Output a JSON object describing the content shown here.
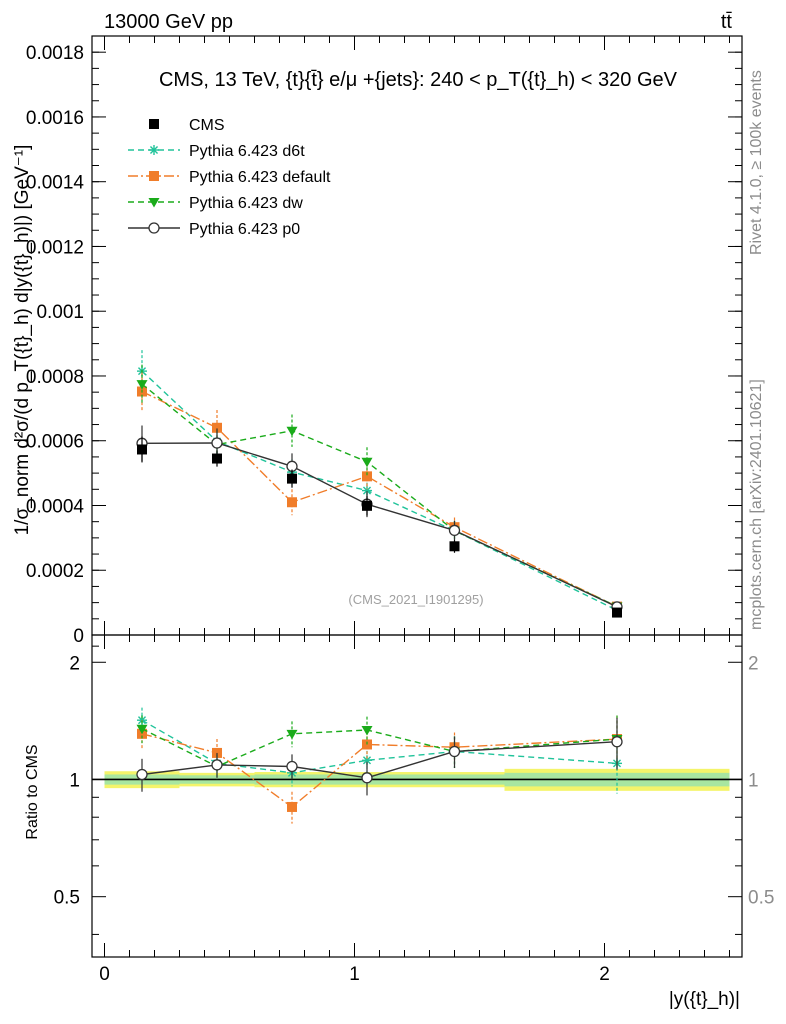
{
  "header": {
    "left": "13000 GeV pp",
    "right": "tt̄"
  },
  "side": {
    "rivet": "Rivet 4.1.0, ≥ 100k events",
    "mcplots": "mcplots.cern.ch [arXiv:2401.10621]"
  },
  "chart_data": [
    {
      "type": "line",
      "title": "CMS, 13 TeV, {t}{t̄} e/μ +{jets}: 240 <  p_T({t}_h) < 320 GeV",
      "watermark": "(CMS_2021_I1901295)",
      "xlabel": "|y({t}_h)|",
      "ylabel": "1/σ_norm d²σ/(d p_T({t}_h) d|y({t}_h)|) [GeV⁻¹]",
      "xlim": [
        -0.05,
        2.55
      ],
      "ylim": [
        0,
        0.00185
      ],
      "yticks": [
        {
          "v": 0,
          "label": "0"
        },
        {
          "v": 0.0002,
          "label": "0.0002"
        },
        {
          "v": 0.0004,
          "label": "0.0004"
        },
        {
          "v": 0.0006,
          "label": "0.0006"
        },
        {
          "v": 0.0008,
          "label": "0.0008"
        },
        {
          "v": 0.001,
          "label": "0.001"
        },
        {
          "v": 0.0012,
          "label": "0.0012"
        },
        {
          "v": 0.0014,
          "label": "0.0014"
        },
        {
          "v": 0.0016,
          "label": "0.0016"
        },
        {
          "v": 0.0018,
          "label": "0.0018"
        }
      ],
      "x": [
        0.15,
        0.45,
        0.75,
        1.05,
        1.4,
        2.05
      ],
      "series": [
        {
          "name": "CMS",
          "color": "#000000",
          "marker": "square",
          "dash": "none",
          "values": [
            0.000573,
            0.000545,
            0.000483,
            0.000399,
            0.000274,
            6.93e-05
          ],
          "err": [
            4e-05,
            2.5e-05,
            2.8e-05,
            3e-05,
            2e-05,
            8e-06
          ]
        },
        {
          "name": "Pythia 6.423 d6t",
          "color": "#20c39a",
          "marker": "star",
          "dash": "6,4",
          "values": [
            0.000815,
            0.000598,
            0.000503,
            0.000446,
            0.000322,
            7.62e-05
          ],
          "err": [
            6.5e-05,
            4.5e-05,
            4e-05,
            4e-05,
            3e-05,
            1.5e-05
          ]
        },
        {
          "name": "Pythia 6.423 default",
          "color": "#f07d2a",
          "marker": "square",
          "dash": "10,3,2,3",
          "values": [
            0.000752,
            0.00064,
            0.00041,
            0.00049,
            0.000333,
            8.77e-05
          ],
          "err": [
            6e-05,
            5.5e-05,
            4e-05,
            4e-05,
            3e-05,
            1.5e-05
          ]
        },
        {
          "name": "Pythia 6.423 dw",
          "color": "#1aab1a",
          "marker": "triangle",
          "dash": "6,4",
          "values": [
            0.000775,
            0.000588,
            0.000631,
            0.000535,
            0.000322,
            8.82e-05
          ],
          "err": [
            6e-05,
            4.5e-05,
            5e-05,
            4.5e-05,
            3e-05,
            1.5e-05
          ]
        },
        {
          "name": "Pythia 6.423 p0",
          "color": "#333333",
          "marker": "circle",
          "dash": "none",
          "values": [
            0.000592,
            0.000593,
            0.000521,
            0.000404,
            0.000323,
            8.68e-05
          ],
          "err": [
            5.5e-05,
            4.5e-05,
            4e-05,
            4e-05,
            3e-05,
            1.5e-05
          ]
        }
      ]
    },
    {
      "type": "line",
      "ylabel": "Ratio to CMS",
      "xlabel": "|y({t}_h)|",
      "ylim": [
        0.35,
        2.35
      ],
      "yticks": [
        {
          "v": 0.5,
          "label": "0.5"
        },
        {
          "v": 1,
          "label": "1"
        },
        {
          "v": 2,
          "label": "2"
        }
      ],
      "xticks": [
        {
          "v": 0,
          "label": "0"
        },
        {
          "v": 1,
          "label": "1"
        },
        {
          "v": 2,
          "label": "2"
        }
      ],
      "bins": [
        0,
        0.3,
        0.6,
        0.9,
        1.2,
        1.6,
        2.5
      ],
      "band_inner": [
        0.03,
        0.025,
        0.03,
        0.03,
        0.03,
        0.04
      ],
      "band_outer": [
        0.05,
        0.04,
        0.045,
        0.045,
        0.045,
        0.065
      ],
      "x": [
        0.15,
        0.45,
        0.75,
        1.05,
        1.4,
        2.05
      ],
      "series": [
        {
          "name": "Pythia 6.423 d6t",
          "color": "#20c39a",
          "marker": "star",
          "dash": "6,4",
          "values": [
            1.42,
            1.1,
            1.04,
            1.12,
            1.18,
            1.1
          ],
          "err": [
            0.11,
            0.08,
            0.08,
            0.1,
            0.11,
            0.18
          ]
        },
        {
          "name": "Pythia 6.423 default",
          "color": "#f07d2a",
          "marker": "square",
          "dash": "10,3,2,3",
          "values": [
            1.31,
            1.17,
            0.85,
            1.23,
            1.21,
            1.27
          ],
          "err": [
            0.11,
            0.1,
            0.08,
            0.1,
            0.11,
            0.19
          ]
        },
        {
          "name": "Pythia 6.423 dw",
          "color": "#1aab1a",
          "marker": "triangle",
          "dash": "6,4",
          "values": [
            1.35,
            1.08,
            1.31,
            1.34,
            1.18,
            1.27
          ],
          "err": [
            0.11,
            0.08,
            0.1,
            0.11,
            0.11,
            0.19
          ]
        },
        {
          "name": "Pythia 6.423 p0",
          "color": "#333333",
          "marker": "circle",
          "dash": "none",
          "values": [
            1.03,
            1.09,
            1.08,
            1.01,
            1.18,
            1.25
          ],
          "err": [
            0.1,
            0.08,
            0.08,
            0.1,
            0.11,
            0.19
          ]
        }
      ]
    }
  ]
}
